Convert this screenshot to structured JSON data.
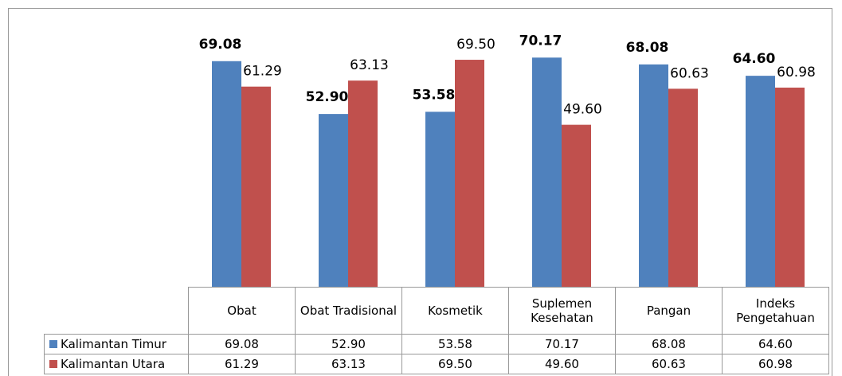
{
  "chart_data": {
    "type": "bar",
    "categories": [
      "Obat",
      "Obat Tradisional",
      "Kosmetik",
      "Suplemen Kesehatan",
      "Pangan",
      "Indeks Pengetahuan"
    ],
    "series": [
      {
        "name": "Kalimantan Timur",
        "color": "#4f81bd",
        "values": [
          69.08,
          52.9,
          53.58,
          70.17,
          68.08,
          64.6
        ],
        "value_labels": [
          "69.08",
          "52.90",
          "53.58",
          "70.17",
          "68.08",
          "64.60"
        ]
      },
      {
        "name": "Kalimantan Utara",
        "color": "#c0504d",
        "values": [
          61.29,
          63.13,
          69.5,
          49.6,
          60.63,
          60.98
        ],
        "value_labels": [
          "61.29",
          "63.13",
          "69.50",
          "49.60",
          "60.63",
          "60.98"
        ]
      }
    ],
    "ylim": [
      0,
      80
    ]
  }
}
